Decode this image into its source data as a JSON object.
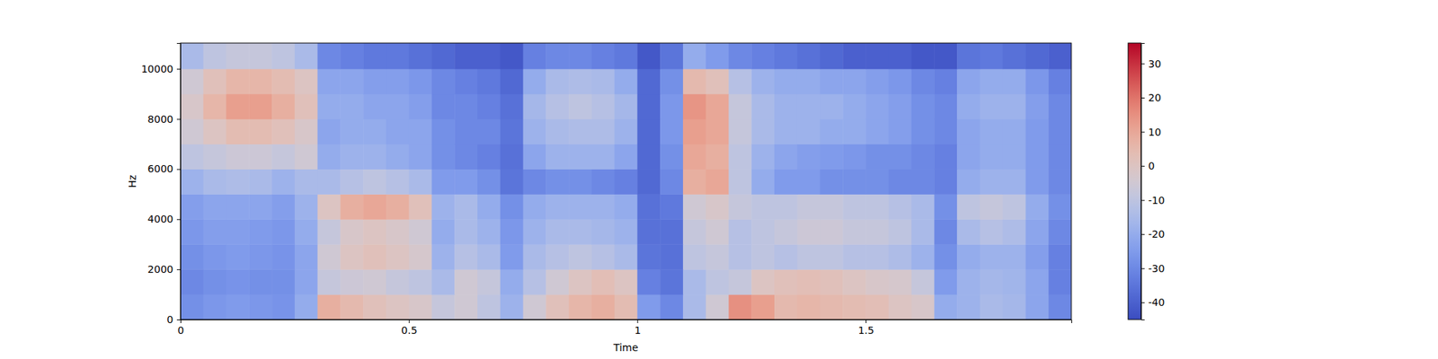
{
  "chart_data": {
    "type": "heatmap",
    "x_label": "Time",
    "y_label": "Hz",
    "xlim": [
      0,
      1.95
    ],
    "ylim": [
      0,
      11025
    ],
    "xticks": [
      0,
      0.5,
      1,
      1.5
    ],
    "yticks": [
      0,
      2000,
      4000,
      6000,
      8000,
      10000
    ],
    "x_bins": [
      0,
      0.05,
      0.1,
      0.15,
      0.2,
      0.25,
      0.3,
      0.35,
      0.4,
      0.45,
      0.5,
      0.55,
      0.6,
      0.65,
      0.7,
      0.75,
      0.8,
      0.85,
      0.9,
      0.95,
      1.0,
      1.05,
      1.1,
      1.15,
      1.2,
      1.25,
      1.3,
      1.35,
      1.4,
      1.45,
      1.5,
      1.55,
      1.6,
      1.65,
      1.7,
      1.75,
      1.8,
      1.85,
      1.9,
      1.95
    ],
    "y_bins": [
      0,
      1000,
      2000,
      3000,
      4000,
      5000,
      6000,
      7000,
      8000,
      9000,
      10000,
      11025
    ],
    "z": [
      [
        -28,
        -26,
        -25,
        -26,
        -27,
        -20,
        8,
        5,
        2,
        0,
        -2,
        -8,
        -5,
        -10,
        -18,
        -5,
        2,
        6,
        8,
        4,
        -25,
        -30,
        -15,
        -5,
        15,
        12,
        5,
        6,
        5,
        4,
        3,
        0,
        -2,
        -20,
        -18,
        -15,
        -16,
        -22,
        -30
      ],
      [
        -30,
        -28,
        -27,
        -28,
        -28,
        -22,
        -8,
        -6,
        -5,
        -8,
        -10,
        -15,
        -5,
        -8,
        -20,
        -12,
        -5,
        0,
        3,
        0,
        -32,
        -35,
        -15,
        -10,
        -8,
        0,
        2,
        3,
        2,
        0,
        -2,
        -3,
        -8,
        -25,
        -18,
        -16,
        -17,
        -22,
        -32
      ],
      [
        -28,
        -26,
        -25,
        -26,
        -27,
        -22,
        -5,
        0,
        2,
        0,
        -3,
        -18,
        -12,
        -15,
        -25,
        -15,
        -12,
        -10,
        -12,
        -15,
        -35,
        -36,
        -10,
        -8,
        -12,
        -10,
        -12,
        -10,
        -10,
        -12,
        -12,
        -14,
        -18,
        -28,
        -20,
        -18,
        -18,
        -24,
        -32
      ],
      [
        -26,
        -24,
        -24,
        -25,
        -26,
        -20,
        -8,
        -2,
        0,
        -2,
        -5,
        -20,
        -15,
        -18,
        -26,
        -18,
        -15,
        -15,
        -16,
        -18,
        -36,
        -36,
        -8,
        -5,
        -12,
        -10,
        -8,
        -6,
        -6,
        -8,
        -8,
        -10,
        -15,
        -30,
        -15,
        -12,
        -14,
        -22,
        -30
      ],
      [
        -24,
        -22,
        -22,
        -22,
        -24,
        -18,
        0,
        8,
        10,
        8,
        2,
        -18,
        -15,
        -20,
        -28,
        -20,
        -18,
        -18,
        -18,
        -20,
        -36,
        -34,
        -5,
        -2,
        -8,
        -10,
        -10,
        -8,
        -8,
        -10,
        -10,
        -12,
        -15,
        -28,
        -10,
        -8,
        -10,
        -20,
        -28
      ],
      [
        -18,
        -15,
        -14,
        -15,
        -18,
        -15,
        -15,
        -12,
        -10,
        -12,
        -15,
        -25,
        -25,
        -28,
        -35,
        -30,
        -28,
        -28,
        -30,
        -32,
        -38,
        -30,
        8,
        10,
        -10,
        -20,
        -25,
        -25,
        -28,
        -28,
        -28,
        -30,
        -30,
        -32,
        -20,
        -18,
        -18,
        -25,
        -30
      ],
      [
        -10,
        -8,
        -6,
        -6,
        -8,
        -5,
        -20,
        -18,
        -18,
        -20,
        -22,
        -28,
        -30,
        -32,
        -36,
        -22,
        -18,
        -18,
        -18,
        -22,
        -38,
        -28,
        10,
        8,
        -10,
        -18,
        -22,
        -24,
        -25,
        -26,
        -28,
        -28,
        -30,
        -32,
        -22,
        -20,
        -20,
        -25,
        -30
      ],
      [
        -5,
        0,
        4,
        4,
        2,
        -2,
        -22,
        -20,
        -20,
        -22,
        -22,
        -28,
        -30,
        -30,
        -35,
        -18,
        -15,
        -14,
        -14,
        -18,
        -38,
        -26,
        12,
        10,
        -8,
        -15,
        -18,
        -18,
        -20,
        -20,
        -22,
        -24,
        -28,
        -30,
        -22,
        -20,
        -20,
        -25,
        -30
      ],
      [
        -2,
        6,
        12,
        12,
        8,
        2,
        -20,
        -20,
        -22,
        -22,
        -24,
        -30,
        -30,
        -32,
        -36,
        -16,
        -12,
        -10,
        -12,
        -16,
        -38,
        -26,
        14,
        10,
        -8,
        -15,
        -18,
        -18,
        -18,
        -20,
        -22,
        -24,
        -28,
        -30,
        -20,
        -18,
        -18,
        -24,
        -30
      ],
      [
        -5,
        2,
        6,
        6,
        4,
        0,
        -22,
        -22,
        -24,
        -24,
        -26,
        -30,
        -32,
        -34,
        -38,
        -20,
        -15,
        -14,
        -15,
        -20,
        -38,
        -28,
        5,
        2,
        -12,
        -18,
        -20,
        -20,
        -22,
        -22,
        -24,
        -26,
        -30,
        -32,
        -22,
        -20,
        -20,
        -26,
        -32
      ],
      [
        -15,
        -10,
        -8,
        -8,
        -10,
        -15,
        -30,
        -32,
        -34,
        -34,
        -36,
        -38,
        -40,
        -40,
        -42,
        -32,
        -30,
        -30,
        -32,
        -34,
        -42,
        -35,
        -20,
        -25,
        -30,
        -32,
        -34,
        -36,
        -38,
        -40,
        -40,
        -40,
        -42,
        -42,
        -35,
        -34,
        -36,
        -38,
        -40
      ]
    ],
    "zlim": [
      -45,
      36
    ],
    "zticks": [
      -40,
      -30,
      -20,
      -10,
      0,
      10,
      20,
      30
    ]
  }
}
